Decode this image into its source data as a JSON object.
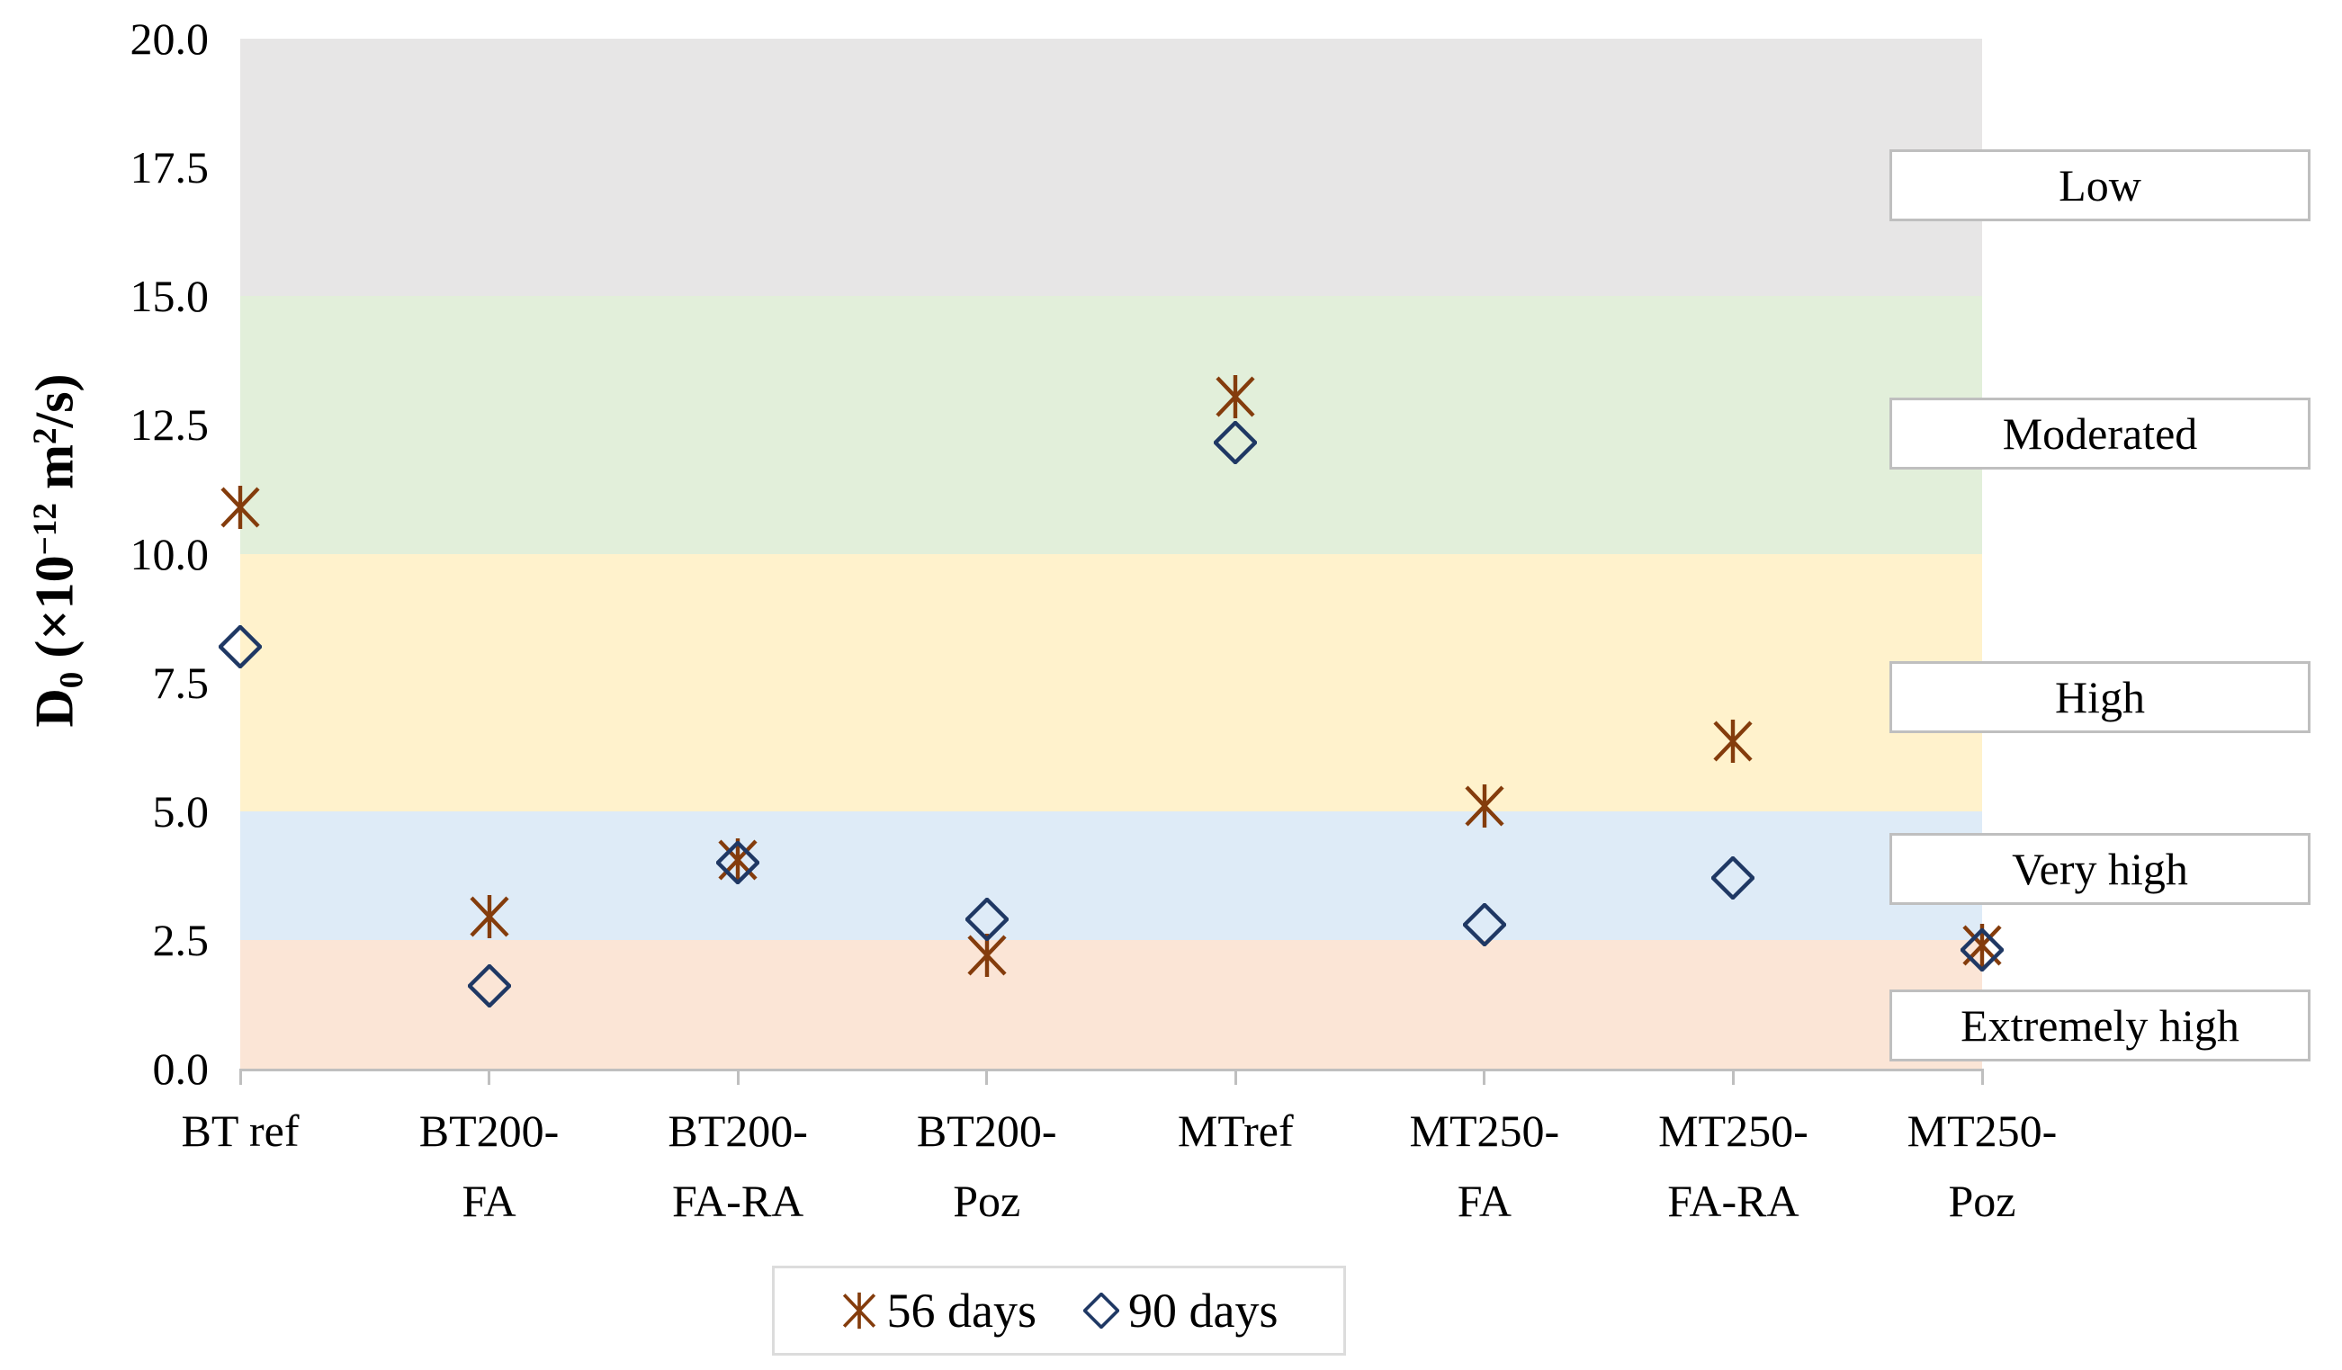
{
  "chart_data": {
    "type": "scatter",
    "categories": [
      "BT ref",
      "BT200-FA",
      "BT200-FA-RA",
      "BT200-Poz",
      "MTref",
      "MT250-FA",
      "MT250-FA-RA",
      "MT250-Poz"
    ],
    "category_label_lines": [
      [
        "BT ref"
      ],
      [
        "BT200-",
        "FA"
      ],
      [
        "BT200-",
        "FA-RA"
      ],
      [
        "BT200-",
        "Poz"
      ],
      [
        "MTref"
      ],
      [
        "MT250-",
        "FA"
      ],
      [
        "MT250-",
        "FA-RA"
      ],
      [
        "MT250-",
        "Poz"
      ]
    ],
    "series": [
      {
        "name": "56 days",
        "marker": "asterisk",
        "color": "#843C0C",
        "values": [
          10.9,
          2.95,
          4.05,
          2.2,
          13.05,
          5.1,
          6.35,
          2.4
        ]
      },
      {
        "name": "90 days",
        "marker": "open-diamond",
        "color": "#1F3864",
        "values": [
          8.2,
          1.6,
          4.0,
          2.9,
          12.15,
          2.8,
          3.7,
          2.3
        ]
      }
    ],
    "ylabel": "D0 (×10−12 m2/s)",
    "ylabel_parts": {
      "pre": "D",
      "sub": "0",
      "mid1": " (×10",
      "sup1": "−12",
      "mid2": " m",
      "sup2": "2",
      "post": "/s)"
    },
    "ylim": [
      0,
      20
    ],
    "ytick_step": 2.5,
    "ytick_labels": [
      "0.0",
      "2.5",
      "5.0",
      "7.5",
      "10.0",
      "12.5",
      "15.0",
      "17.5",
      "20.0"
    ],
    "xlabel": "",
    "grid": false,
    "legend_position": "bottom",
    "axis_color": "#BFBFBF",
    "bands": [
      {
        "label": "Low",
        "from": 15,
        "to": 20,
        "color": "#E7E6E6",
        "label_center_value": 17.15
      },
      {
        "label": "Moderated",
        "from": 10,
        "to": 15,
        "color": "#E2EFDA",
        "label_center_value": 12.33
      },
      {
        "label": "High",
        "from": 5,
        "to": 10,
        "color": "#FFF2CC",
        "label_center_value": 7.21
      },
      {
        "label": "Very high",
        "from": 2.5,
        "to": 5,
        "color": "#DEEBF7",
        "label_center_value": 3.88
      },
      {
        "label": "Extremely high",
        "from": 0,
        "to": 2.5,
        "color": "#FBE5D6",
        "label_center_value": 0.84
      }
    ]
  }
}
